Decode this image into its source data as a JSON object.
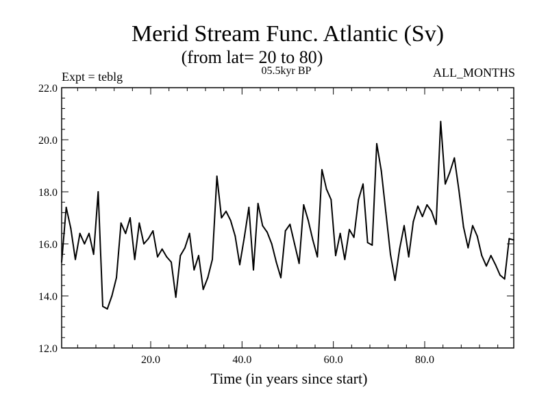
{
  "chart_data": {
    "type": "line",
    "title": "Merid Stream Func. Atlantic (Sv)",
    "subtitle": "(from lat= 20 to 80)",
    "left_label": "Expt = teblg",
    "center_label": "05.5kyr BP",
    "right_label": "ALL_MONTHS",
    "xlabel": "Time (in years since start)",
    "ylabel": "",
    "xlim": [
      0.5,
      99.5
    ],
    "ylim": [
      12.0,
      22.0
    ],
    "x_ticks": [
      20,
      40,
      60,
      80
    ],
    "x_tick_labels": [
      "20.0",
      "40.0",
      "60.0",
      "80.0"
    ],
    "y_ticks": [
      12,
      14,
      16,
      18,
      20,
      22
    ],
    "y_tick_labels": [
      "12.0",
      "14.0",
      "16.0",
      "18.0",
      "20.0",
      "22.0"
    ],
    "grid": false,
    "series": [
      {
        "name": "Merid Stream Func. Atlantic",
        "x": [
          0.5,
          1.5,
          2.5,
          3.5,
          4.5,
          5.5,
          6.5,
          7.5,
          8.5,
          9.5,
          10.5,
          11.5,
          12.5,
          13.5,
          14.5,
          15.5,
          16.5,
          17.5,
          18.5,
          19.5,
          20.5,
          21.5,
          22.5,
          23.5,
          24.5,
          25.5,
          26.5,
          27.5,
          28.5,
          29.5,
          30.5,
          31.5,
          32.5,
          33.5,
          34.5,
          35.5,
          36.5,
          37.5,
          38.5,
          39.5,
          40.5,
          41.5,
          42.5,
          43.5,
          44.5,
          45.5,
          46.5,
          47.5,
          48.5,
          49.5,
          50.5,
          51.5,
          52.5,
          53.5,
          54.5,
          55.5,
          56.5,
          57.5,
          58.5,
          59.5,
          60.5,
          61.5,
          62.5,
          63.5,
          64.5,
          65.5,
          66.5,
          67.5,
          68.5,
          69.5,
          70.5,
          71.5,
          72.5,
          73.5,
          74.5,
          75.5,
          76.5,
          77.5,
          78.5,
          79.5,
          80.5,
          81.5,
          82.5,
          83.5,
          84.5,
          85.5,
          86.5,
          87.5,
          88.5,
          89.5,
          90.5,
          91.5,
          92.5,
          93.5,
          94.5,
          95.5,
          96.5,
          97.5,
          98.5,
          99.5
        ],
        "values": [
          15.3,
          17.4,
          16.6,
          15.4,
          16.4,
          16.0,
          16.4,
          15.6,
          18.0,
          13.6,
          13.5,
          14.0,
          14.7,
          16.8,
          16.4,
          17.0,
          15.4,
          16.8,
          16.0,
          16.2,
          16.5,
          15.5,
          15.8,
          15.5,
          15.3,
          13.95,
          15.55,
          15.85,
          16.4,
          15.0,
          15.55,
          14.25,
          14.7,
          15.4,
          18.6,
          17.0,
          17.25,
          16.9,
          16.3,
          15.2,
          16.25,
          17.4,
          15.0,
          17.55,
          16.7,
          16.45,
          16.0,
          15.3,
          14.7,
          16.5,
          16.75,
          16.0,
          15.25,
          17.5,
          16.9,
          16.15,
          15.5,
          18.85,
          18.1,
          17.7,
          15.55,
          16.4,
          15.4,
          16.55,
          16.25,
          17.7,
          18.3,
          16.05,
          15.95,
          19.85,
          18.8,
          17.2,
          15.6,
          14.6,
          15.8,
          16.7,
          15.5,
          16.85,
          17.45,
          17.05,
          17.5,
          17.25,
          16.75,
          20.7,
          18.3,
          18.75,
          19.3,
          18.05,
          16.65,
          15.85,
          16.7,
          16.3,
          15.55,
          15.15,
          15.55,
          15.2,
          14.8,
          14.65,
          16.2,
          16.15
        ]
      }
    ]
  }
}
